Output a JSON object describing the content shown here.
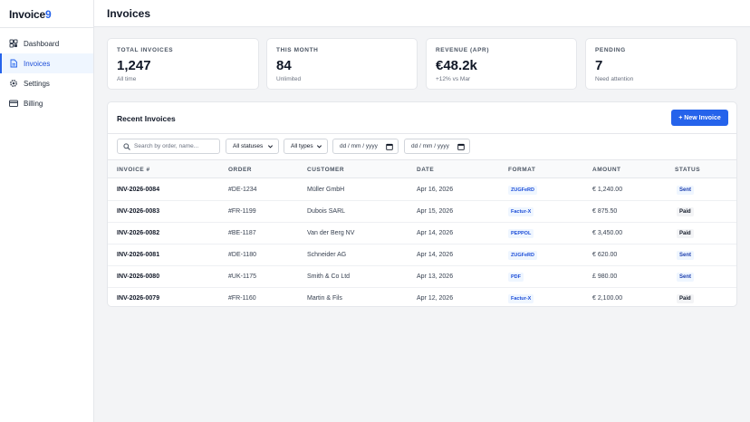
{
  "app": {
    "logo_text": "Invoice",
    "logo_accent": "9"
  },
  "sidebar": {
    "items": [
      {
        "label": "Dashboard",
        "icon": "dashboard-icon"
      },
      {
        "label": "Invoices",
        "icon": "document-icon",
        "active": true
      },
      {
        "label": "Settings",
        "icon": "gear-icon"
      },
      {
        "label": "Billing",
        "icon": "credit-card-icon"
      }
    ]
  },
  "header": {
    "title": "Invoices"
  },
  "stats": [
    {
      "label": "TOTAL INVOICES",
      "value": "1,247",
      "sub": "All time"
    },
    {
      "label": "THIS MONTH",
      "value": "84",
      "sub": "Unlimited"
    },
    {
      "label": "REVENUE (APR)",
      "value": "€48.2k",
      "sub": "+12% vs Mar"
    },
    {
      "label": "PENDING",
      "value": "7",
      "sub": "Need attention"
    }
  ],
  "panel": {
    "title": "Recent Invoices",
    "new_button": "+ New Invoice",
    "search_placeholder": "Search by order, name...",
    "status_filter": "All statuses",
    "type_filter": "All types",
    "date_from_placeholder": "dd / mm / yyyy",
    "date_to_placeholder": "dd / mm / yyyy"
  },
  "table": {
    "columns": [
      "INVOICE #",
      "ORDER",
      "CUSTOMER",
      "DATE",
      "FORMAT",
      "AMOUNT",
      "STATUS"
    ],
    "rows": [
      {
        "invoice": "INV-2026-0084",
        "order": "#DE-1234",
        "customer": "Müller GmbH",
        "date": "Apr 16, 2026",
        "format": "ZUGFeRD",
        "amount": "€ 1,240.00",
        "status": "Sent"
      },
      {
        "invoice": "INV-2026-0083",
        "order": "#FR-1199",
        "customer": "Dubois SARL",
        "date": "Apr 15, 2026",
        "format": "Factur-X",
        "amount": "€ 875.50",
        "status": "Paid"
      },
      {
        "invoice": "INV-2026-0082",
        "order": "#BE-1187",
        "customer": "Van der Berg NV",
        "date": "Apr 14, 2026",
        "format": "PEPPOL",
        "amount": "€ 3,450.00",
        "status": "Paid"
      },
      {
        "invoice": "INV-2026-0081",
        "order": "#DE-1180",
        "customer": "Schneider AG",
        "date": "Apr 14, 2026",
        "format": "ZUGFeRD",
        "amount": "€ 620.00",
        "status": "Sent"
      },
      {
        "invoice": "INV-2026-0080",
        "order": "#UK-1175",
        "customer": "Smith & Co Ltd",
        "date": "Apr 13, 2026",
        "format": "PDF",
        "amount": "£ 980.00",
        "status": "Sent"
      },
      {
        "invoice": "INV-2026-0079",
        "order": "#FR-1160",
        "customer": "Martin & Fils",
        "date": "Apr 12, 2026",
        "format": "Factur-X",
        "amount": "€ 2,100.00",
        "status": "Paid"
      }
    ]
  },
  "colors": {
    "accent": "#2563eb",
    "sent_badge": "#eff6ff",
    "paid_badge": "#f3f4f6"
  }
}
